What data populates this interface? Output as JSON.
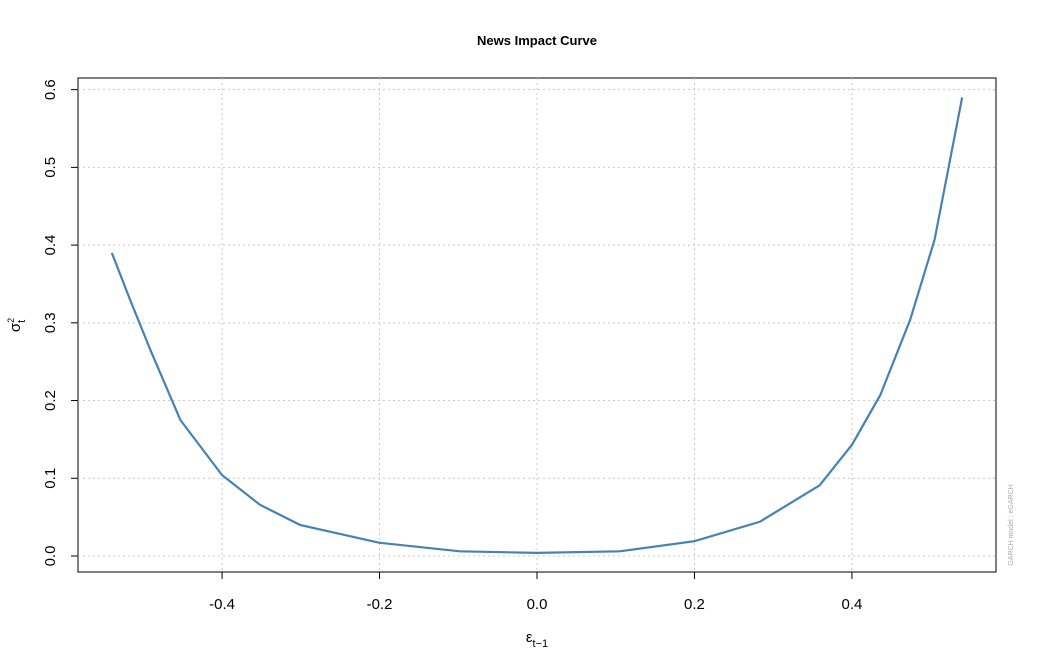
{
  "chart_data": {
    "type": "line",
    "title": "News Impact Curve",
    "xlabel_symbol": "ε",
    "xlabel_subscript": "t−1",
    "ylabel_symbol": "σ",
    "ylabel_superscript": "2",
    "ylabel_subscript": "t",
    "side_note": "GARCH model : eGARCH",
    "x": [
      -0.54,
      -0.517,
      -0.491,
      -0.453,
      -0.4,
      -0.352,
      -0.301,
      -0.2,
      -0.098,
      0,
      0.105,
      0.2,
      0.283,
      0.359,
      0.4,
      0.436,
      0.474,
      0.505,
      0.54
    ],
    "series": [
      {
        "color": "#4682b4",
        "values": [
          0.39,
          0.33,
          0.265,
          0.175,
          0.104,
          0.066,
          0.04,
          0.017,
          0.006,
          0.004,
          0.006,
          0.019,
          0.044,
          0.091,
          0.143,
          0.207,
          0.304,
          0.407,
          0.59
        ]
      }
    ],
    "xlim": [
      -0.583,
      0.583
    ],
    "ylim": [
      -0.0206,
      0.615
    ],
    "xticks": [
      -0.4,
      -0.2,
      {
        "value": 0,
        "label": "0.0"
      },
      0.2,
      0.4
    ],
    "yticks": [
      {
        "value": 0,
        "label": "0.0"
      },
      0.1,
      0.2,
      0.3,
      0.4,
      0.5,
      0.6
    ],
    "grid": true
  }
}
